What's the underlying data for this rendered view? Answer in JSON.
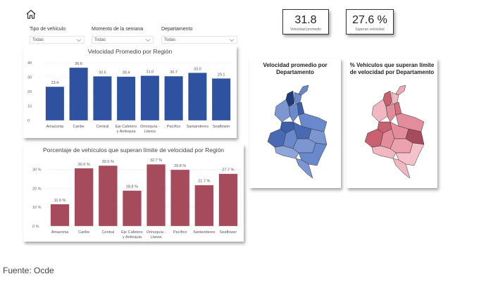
{
  "filters": [
    {
      "label": "Tipo de vehículo",
      "value": "Todas"
    },
    {
      "label": "Momento de la semana",
      "value": "Todas"
    },
    {
      "label": "Departamento",
      "value": "Todas"
    }
  ],
  "kpis": [
    {
      "value": "31.8",
      "label": "Velocidad promedio"
    },
    {
      "value": "27.6 %",
      "label": "Superan velocidad"
    }
  ],
  "maps": [
    {
      "title": "Velocidad promedio por Departamento",
      "color": "#5a7bc2"
    },
    {
      "title": "% Vehículos que superan límite de velocidad por Departamento",
      "color": "#e28c9c"
    }
  ],
  "colors": {
    "blue_bar": "#2f52a0",
    "red_bar": "#a64b5c"
  },
  "source": "Fuente: Ocde",
  "chart_data": [
    {
      "type": "bar",
      "title": "Velocidad Promedio por Región",
      "categories": [
        "Amazonia",
        "Caribe",
        "Central",
        "Eje Cafetero y Antioquia",
        "Orinoquía - Llanos",
        "Pacífico",
        "Santanderes",
        "Seaflower"
      ],
      "category_lines": [
        [
          "Amazonia"
        ],
        [
          "Caribe"
        ],
        [
          "Central"
        ],
        [
          "Eje Cafetero",
          "y Antioquia"
        ],
        [
          "Orinoquía -",
          "Llanos"
        ],
        [
          "Pacífico"
        ],
        [
          "Santanderes"
        ],
        [
          "Seaflower"
        ]
      ],
      "values": [
        23.4,
        36.6,
        30.6,
        30.4,
        31.0,
        30.7,
        33.0,
        29.1
      ],
      "labels": [
        "23.4",
        "36.6",
        "30.6",
        "30.4",
        "31.0",
        "30.7",
        "33.0",
        "29.1"
      ],
      "yticks": [
        "0",
        "10",
        "20",
        "30",
        "40"
      ],
      "ytick_values": [
        0,
        10,
        20,
        30,
        40
      ],
      "ylim": [
        0,
        40
      ],
      "grid": true
    },
    {
      "type": "bar",
      "title": "Porcentaje de vehículos que superan límite de velocidad por Región",
      "categories": [
        "Amazonia",
        "Caribe",
        "Central",
        "Eje Cafetero y Antioquia",
        "Orinoquía - Llanos",
        "Pacífico",
        "Santanderes",
        "Seaflower"
      ],
      "category_lines": [
        [
          "Amazonia"
        ],
        [
          "Caribe"
        ],
        [
          "Central"
        ],
        [
          "Eje Cafetero",
          "y Antioquia"
        ],
        [
          "Orinoquía -",
          "Llanos"
        ],
        [
          "Pacífico"
        ],
        [
          "Santanderes"
        ],
        [
          "Seaflower"
        ]
      ],
      "values": [
        11.6,
        30.6,
        32.0,
        18.8,
        32.7,
        29.8,
        21.7,
        27.7
      ],
      "labels": [
        "11.6 %",
        "30.6 %",
        "32.0 %",
        "18.8 %",
        "32.7 %",
        "29.8 %",
        "21.7 %",
        "27.7 %"
      ],
      "yticks": [
        "0 %",
        "10 %",
        "20 %",
        "30 %"
      ],
      "ytick_values": [
        0,
        10,
        20,
        30
      ],
      "ylim": [
        0,
        35
      ],
      "grid": true
    }
  ]
}
